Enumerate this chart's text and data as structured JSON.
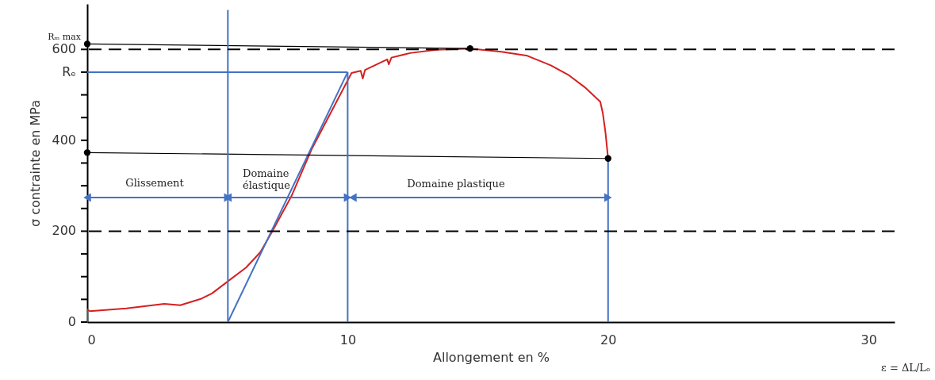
{
  "chart_data": {
    "type": "line",
    "xlabel": "Allongement en %",
    "ylabel": "σ contrainte en MPa",
    "xlim": [
      0,
      31
    ],
    "ylim": [
      0,
      700
    ],
    "xticks": [
      0,
      10,
      20,
      30
    ],
    "yticks": [
      0,
      {
        "value": 50,
        "label": null
      },
      {
        "value": 100,
        "label": null
      },
      {
        "value": 150,
        "label": null
      },
      200,
      {
        "value": 250,
        "label": null
      },
      {
        "value": 300,
        "label": null
      },
      {
        "value": 350,
        "label": null
      },
      400,
      {
        "value": 450,
        "label": null
      },
      {
        "value": 500,
        "label": null
      },
      {
        "value": 550,
        "label": "Rₑ"
      },
      600
    ],
    "grid": false,
    "series": [
      {
        "color": "#d62020",
        "x": [
          0,
          0,
          0.1,
          1.5,
          2.96,
          3.57,
          4.36,
          4.79,
          5.43,
          6.1,
          6.65,
          7.1,
          7.84,
          8.63,
          10.15,
          10.5,
          10.58,
          10.67,
          11.52,
          11.58,
          11.68,
          12.4,
          13.4,
          14.7,
          15.9,
          16.9,
          17.8,
          18.5,
          19.1,
          19.7,
          19.8,
          19.9,
          20.0
        ],
        "values": [
          0,
          28,
          24,
          30,
          40,
          37,
          51,
          63,
          91,
          120,
          154,
          199,
          277,
          382,
          548,
          553,
          536,
          555,
          578,
          567,
          582,
          592,
          599,
          602,
          595,
          586,
          565,
          543,
          517,
          485,
          459,
          417,
          360
        ]
      },
      {
        "color": "#4472c4",
        "x": [
          5.4,
          10
        ],
        "values": [
          0,
          550
        ]
      },
      {
        "color": "#4472c4",
        "x": [
          0,
          10
        ],
        "values": [
          550,
          550
        ]
      },
      {
        "color": "#000000",
        "x": [
          0,
          14.7
        ],
        "values": [
          612,
          602
        ]
      },
      {
        "color": "#000000",
        "x": [
          0,
          20
        ],
        "values": [
          373,
          360
        ]
      },
      {
        "color": "#4472c4",
        "x": [
          5.4,
          5.4
        ],
        "values": [
          0,
          687
        ]
      },
      {
        "color": "#4472c4",
        "x": [
          10,
          10
        ],
        "values": [
          0,
          550
        ]
      },
      {
        "color": "#4472c4",
        "x": [
          20,
          20
        ],
        "values": [
          0,
          360
        ]
      },
      {
        "color": "#4472c4",
        "marker": "triangle",
        "x": [
          0,
          5.4
        ],
        "values": [
          274,
          274
        ]
      },
      {
        "color": "#4472c4",
        "marker": "triangle",
        "x": [
          5.4,
          10
        ],
        "values": [
          274,
          274
        ]
      },
      {
        "color": "#4472c4",
        "marker": "triangle",
        "x": [
          10.2,
          20
        ],
        "values": [
          274,
          274
        ]
      },
      {
        "type": "scatter",
        "color": "#000000",
        "x": [
          0,
          0,
          14.7,
          20
        ],
        "values": [
          612,
          373,
          602,
          360
        ]
      }
    ],
    "ref_lines": [
      {
        "axis": "y",
        "value": 600,
        "color": "#000000",
        "line_style": "dashed"
      },
      {
        "axis": "y",
        "value": 200,
        "color": "#000000",
        "line_style": "dashed"
      }
    ],
    "annotations": [
      {
        "text": "Rₘ max",
        "x": 0,
        "y": 612
      },
      "Glissement",
      "Domaine\nélastique",
      "Domaine plastique",
      "ε = ΔL/Lₒ"
    ]
  }
}
